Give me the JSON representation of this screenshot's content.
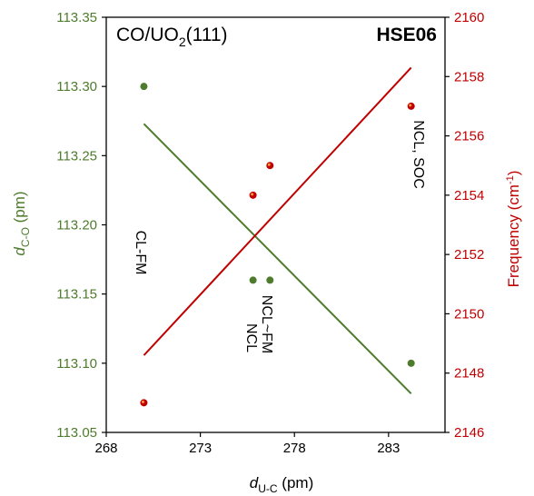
{
  "chart_data": {
    "type": "scatter",
    "title": "CO/UO",
    "title_sub": "2",
    "title_suffix": "(111)",
    "method": "HSE06",
    "xlabel": "d",
    "xlabel_sub": "U-C",
    "xlabel_unit": " (pm)",
    "ylabel_left": "d",
    "ylabel_left_sub": "C-O",
    "ylabel_left_unit": " (pm)",
    "ylabel_right": "Frequency (cm",
    "ylabel_right_sup": "-1",
    "ylabel_right_end": ")",
    "xlim": [
      268,
      286
    ],
    "ylim_left": [
      113.05,
      113.35
    ],
    "ylim_right": [
      2146,
      2160
    ],
    "x_ticks": [
      "268",
      "273",
      "278",
      "283"
    ],
    "y_left_ticks": [
      "113.05",
      "113.10",
      "113.15",
      "113.20",
      "113.25",
      "113.30",
      "113.35"
    ],
    "y_right_ticks": [
      "2146",
      "2148",
      "2150",
      "2152",
      "2154",
      "2156",
      "2158",
      "2160"
    ],
    "series": [
      {
        "axis": "left",
        "color": "#4e7b2c",
        "points": [
          {
            "x": 270.0,
            "y": 113.3
          },
          {
            "x": 275.8,
            "y": 113.16
          },
          {
            "x": 276.7,
            "y": 113.16
          },
          {
            "x": 284.2,
            "y": 113.1
          }
        ],
        "trendline": {
          "x": [
            270.0,
            284.2
          ],
          "y": [
            113.273,
            113.078
          ]
        }
      },
      {
        "axis": "right",
        "color": "#c00000",
        "points": [
          {
            "x": 270.0,
            "y": 2147.0
          },
          {
            "x": 275.8,
            "y": 2154.0
          },
          {
            "x": 276.7,
            "y": 2155.0
          },
          {
            "x": 284.2,
            "y": 2157.0
          }
        ],
        "trendline": {
          "x": [
            270.0,
            284.2
          ],
          "y": [
            2148.6,
            2158.3
          ]
        }
      }
    ],
    "annotations": [
      {
        "id": "cl-fm",
        "text": "CL-FM"
      },
      {
        "id": "ncl",
        "text": "NCL"
      },
      {
        "id": "ncl-fm",
        "text": "NCL~FM"
      },
      {
        "id": "ncl-soc",
        "text": "NCL, SOC"
      }
    ]
  }
}
